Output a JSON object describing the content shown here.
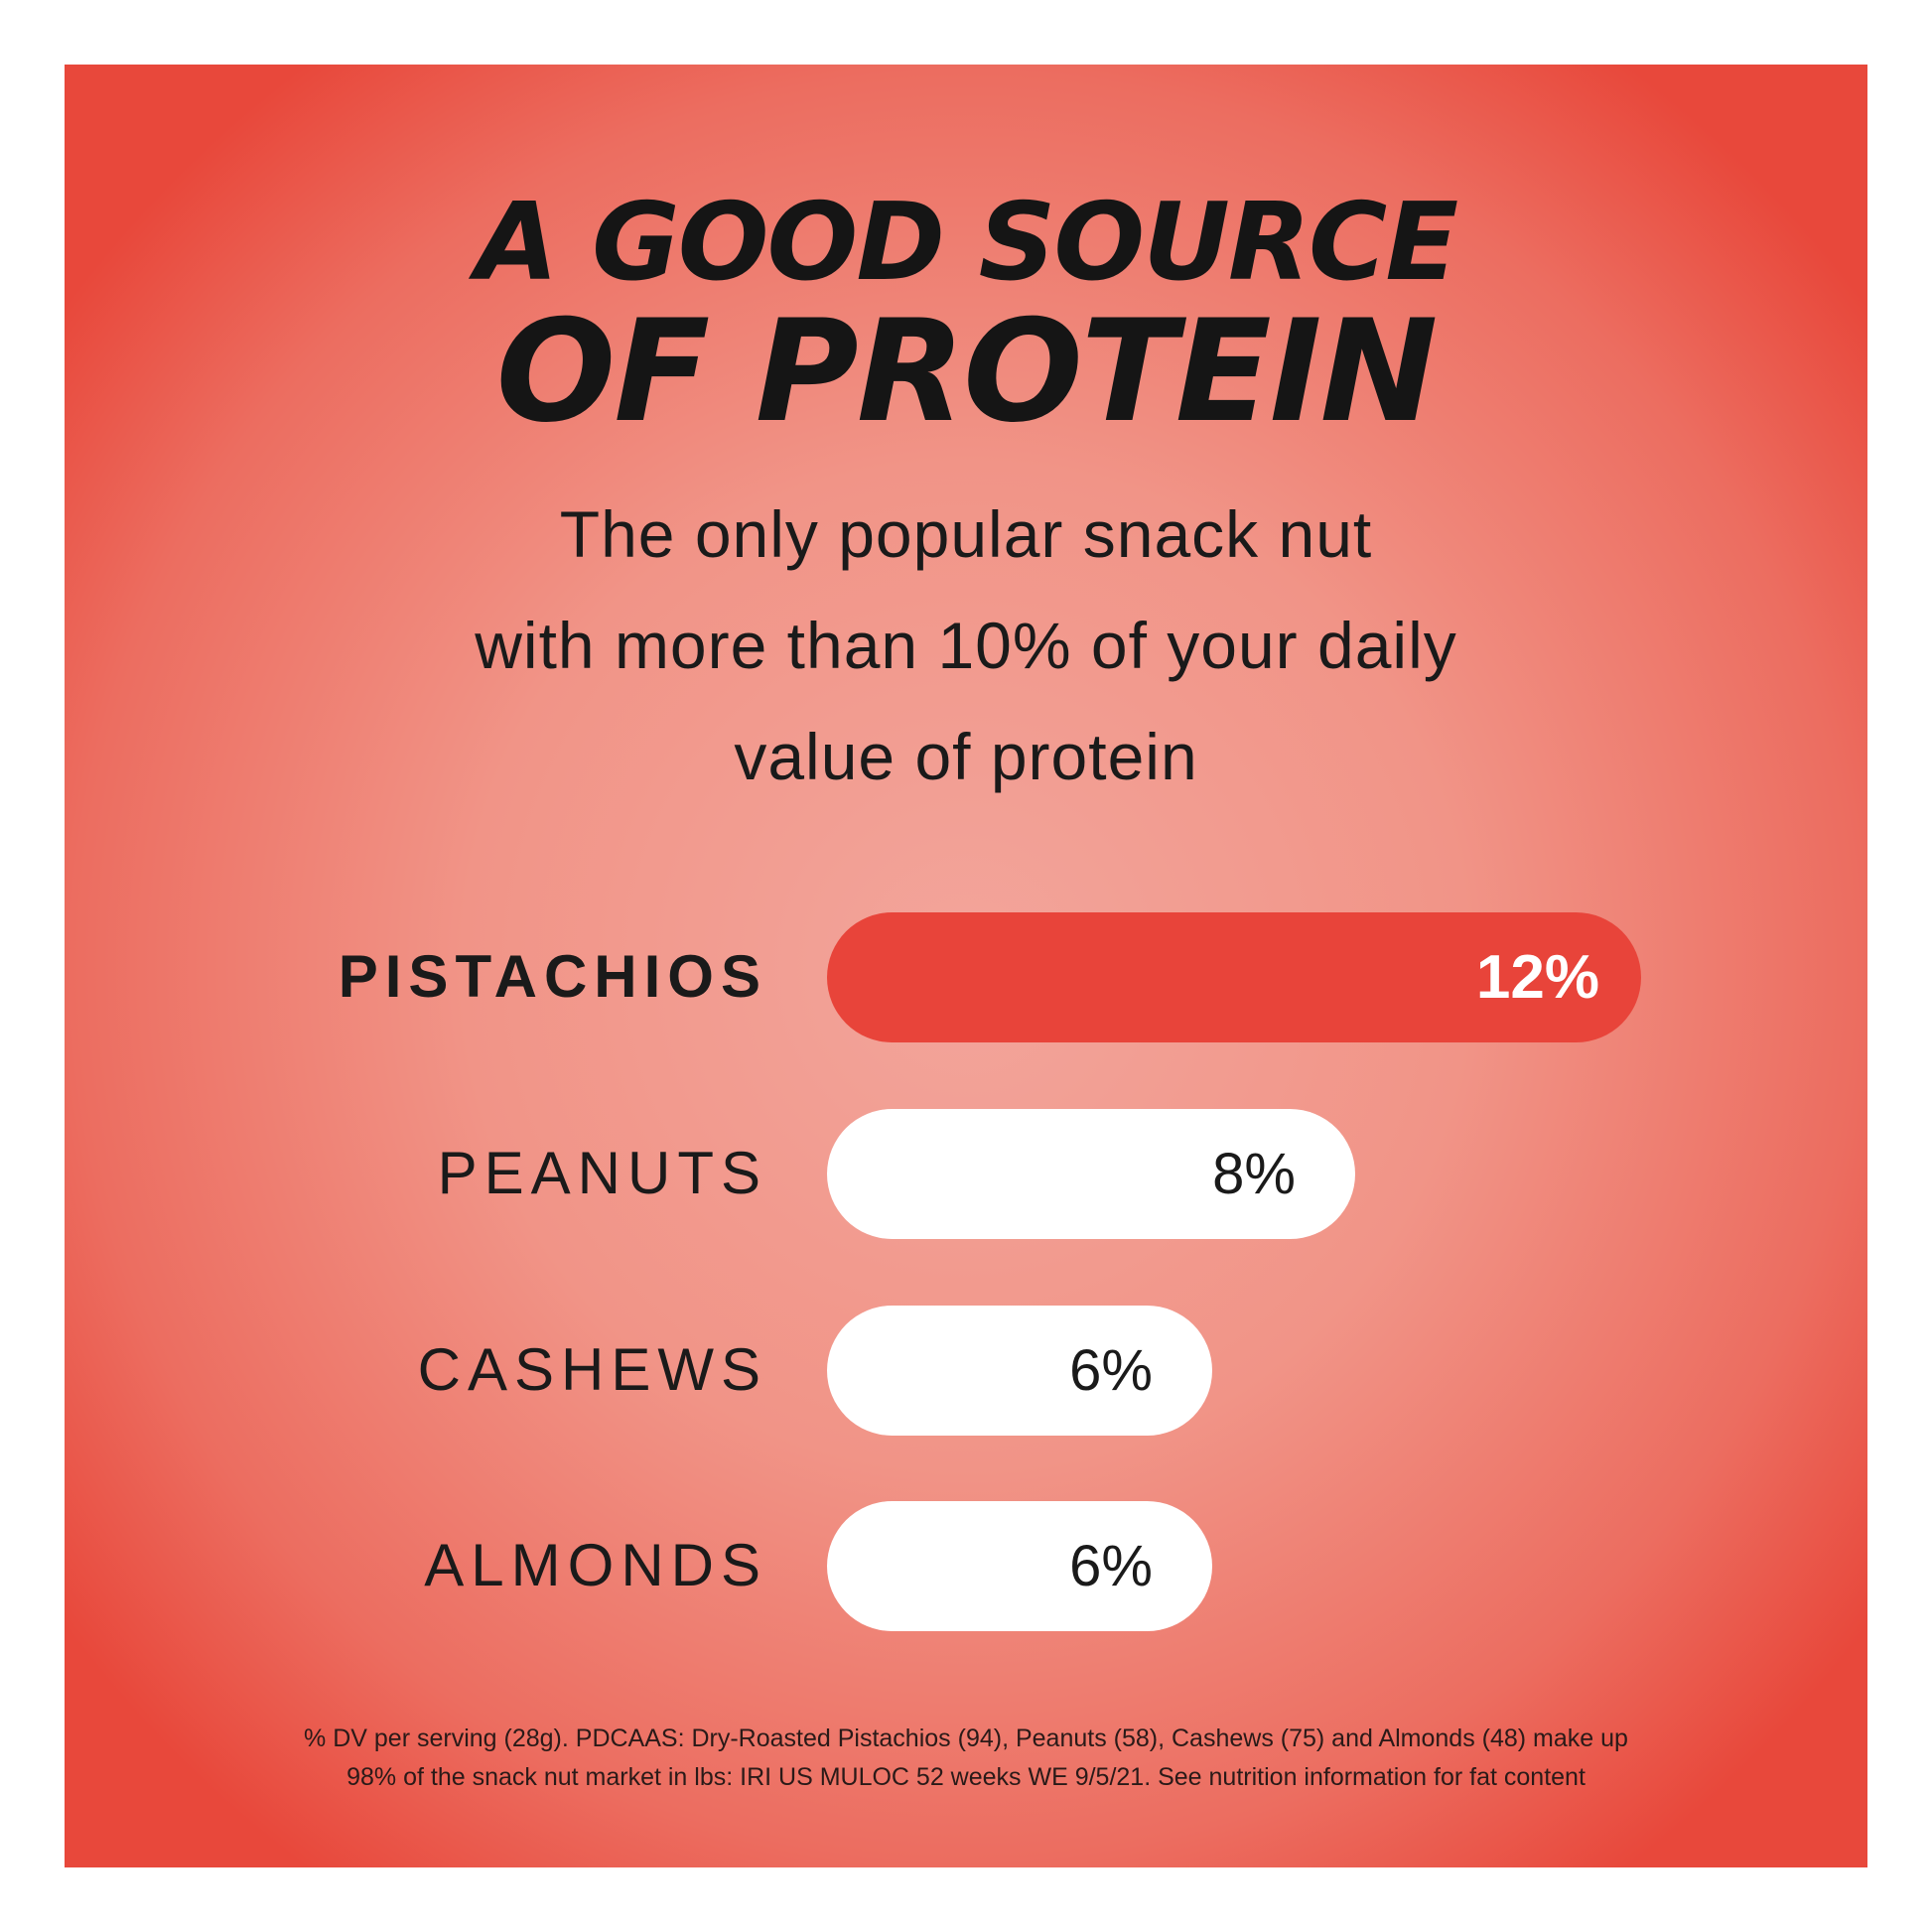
{
  "title_line1": "A GOOD SOURCE",
  "title_line2": "OF PROTEIN",
  "subtitle": [
    "The only popular snack nut",
    "with more than 10% of your daily",
    "value of protein"
  ],
  "colors": {
    "highlight_bar": "#e8443a",
    "other_bars": "#ffffff",
    "background_edge": "#e8483b",
    "background_center": "#f3a59b"
  },
  "chart_data": {
    "type": "bar",
    "orientation": "horizontal",
    "categories": [
      "PISTACHIOS",
      "PEANUTS",
      "CASHEWS",
      "ALMONDS"
    ],
    "values": [
      12,
      8,
      6,
      6
    ],
    "value_labels": [
      "12%",
      "8%",
      "6%",
      "6%"
    ],
    "highlight": "PISTACHIOS",
    "unit": "%"
  },
  "footnote": [
    "% DV per serving (28g). PDCAAS: Dry-Roasted Pistachios (94), Peanuts (58), Cashews (75) and Almonds (48) make up",
    "98% of the snack nut market in lbs: IRI US MULOC 52 weeks WE 9/5/21. See nutrition information for fat content"
  ]
}
